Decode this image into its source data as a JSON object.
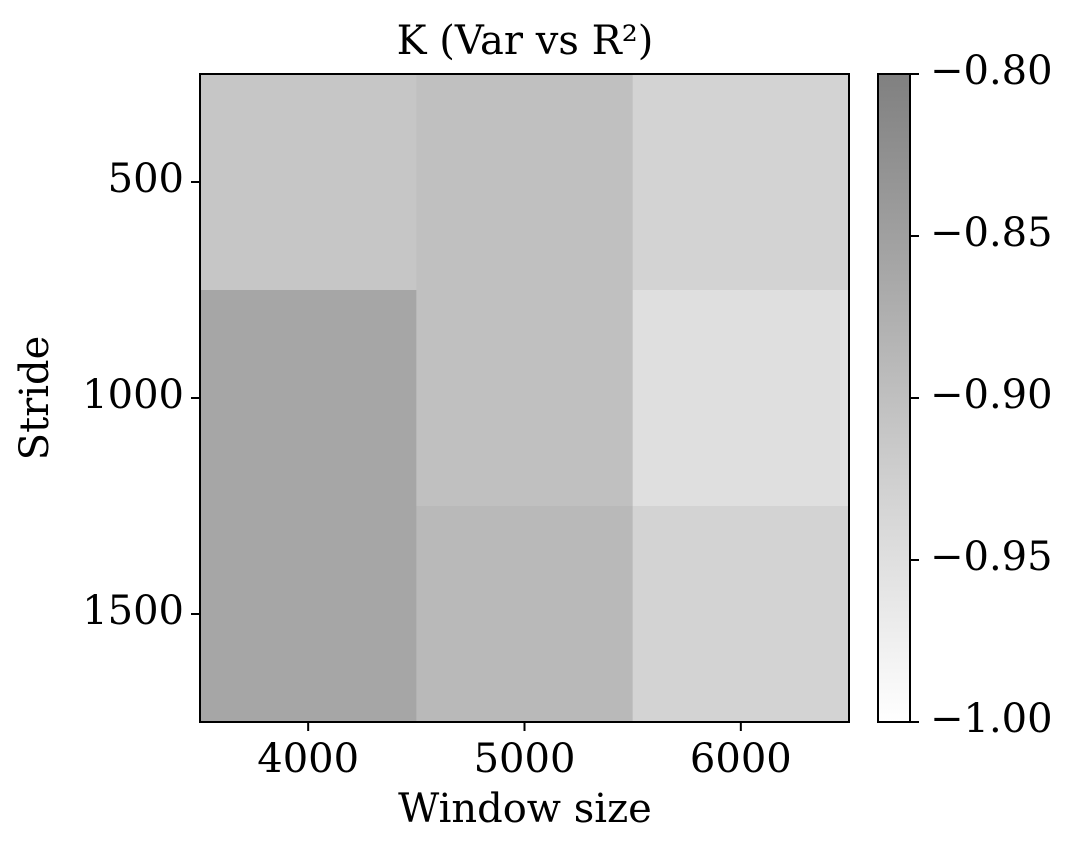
{
  "chart_data": {
    "type": "heatmap",
    "title": "K (Var vs R²)",
    "x_label": "Window size",
    "y_label": "Stride",
    "x_categories": [
      "4000",
      "5000",
      "6000"
    ],
    "y_categories": [
      "500",
      "1000",
      "1500"
    ],
    "values": [
      [
        -0.91,
        -0.9,
        -0.93
      ],
      [
        -0.86,
        -0.9,
        -0.95
      ],
      [
        -0.86,
        -0.89,
        -0.93
      ]
    ],
    "colormap": [
      "#ffffff",
      "#808080"
    ],
    "clim": [
      -1.0,
      -0.8
    ],
    "cticks": [
      {
        "value": -1.0,
        "label": "−1.00"
      },
      {
        "value": -0.95,
        "label": "−0.95"
      },
      {
        "value": -0.9,
        "label": "−0.90"
      },
      {
        "value": -0.85,
        "label": "−0.85"
      },
      {
        "value": -0.8,
        "label": "−0.80"
      }
    ]
  }
}
